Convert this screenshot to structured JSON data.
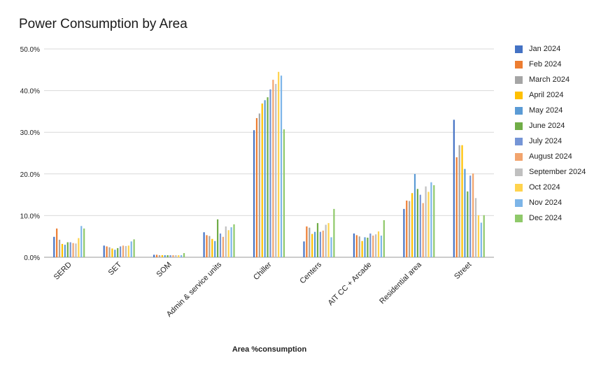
{
  "chart_data": {
    "type": "bar",
    "title": "Power Consumption by Area",
    "xlabel": "Area %consumption",
    "ylabel": "",
    "ylim": [
      0,
      50
    ],
    "yticks": [
      "0.0%",
      "10.0%",
      "20.0%",
      "30.0%",
      "40.0%",
      "50.0%"
    ],
    "grid": true,
    "legend_position": "right",
    "categories": [
      "SERD",
      "SET",
      "SOM",
      "Admin & service units",
      "Chiller",
      "Centers",
      "AIT CC + Arcade",
      "Residential area",
      "Street"
    ],
    "series": [
      {
        "name": "Jan 2024",
        "color": "#4472C4",
        "values": [
          4.9,
          2.8,
          0.6,
          6.0,
          30.5,
          3.8,
          5.7,
          11.6,
          33.0
        ]
      },
      {
        "name": "Feb 2024",
        "color": "#ED7D31",
        "values": [
          6.9,
          2.6,
          0.6,
          5.3,
          33.4,
          7.4,
          5.3,
          13.6,
          24.0
        ]
      },
      {
        "name": "March 2024",
        "color": "#A5A5A5",
        "values": [
          4.2,
          2.4,
          0.5,
          5.1,
          34.5,
          7.1,
          5.0,
          13.5,
          26.9
        ]
      },
      {
        "name": "April 2024",
        "color": "#FFC000",
        "values": [
          3.2,
          2.1,
          0.5,
          4.4,
          36.9,
          5.6,
          3.9,
          15.4,
          26.9
        ]
      },
      {
        "name": "May 2024",
        "color": "#5B9BD5",
        "values": [
          3.0,
          1.8,
          0.5,
          3.9,
          37.7,
          6.1,
          4.8,
          20.0,
          21.2
        ]
      },
      {
        "name": "June 2024",
        "color": "#70AD47",
        "values": [
          3.6,
          2.2,
          0.5,
          9.1,
          38.4,
          8.2,
          4.7,
          16.4,
          15.8
        ]
      },
      {
        "name": "July 2024",
        "color": "#7595D6",
        "values": [
          3.6,
          2.6,
          0.5,
          5.7,
          40.3,
          6.1,
          5.7,
          15.0,
          19.6
        ]
      },
      {
        "name": "August 2024",
        "color": "#F2A46D",
        "values": [
          3.4,
          2.8,
          0.5,
          4.9,
          42.6,
          6.4,
          5.2,
          13.0,
          20.1
        ]
      },
      {
        "name": "September 2024",
        "color": "#C0C0C0",
        "values": [
          3.3,
          2.7,
          0.5,
          7.4,
          41.6,
          7.8,
          5.5,
          17.0,
          14.2
        ]
      },
      {
        "name": "Oct 2024",
        "color": "#FFD34D",
        "values": [
          4.6,
          2.8,
          0.5,
          6.5,
          44.5,
          8.2,
          6.2,
          15.7,
          10.1
        ]
      },
      {
        "name": "Nov 2024",
        "color": "#7DB5E8",
        "values": [
          7.5,
          3.8,
          0.5,
          7.2,
          43.6,
          4.8,
          5.2,
          18.0,
          8.3
        ]
      },
      {
        "name": "Dec 2024",
        "color": "#8FC96A",
        "values": [
          6.9,
          4.3,
          1.0,
          7.9,
          30.7,
          11.6,
          8.9,
          17.3,
          10.1
        ]
      }
    ]
  }
}
